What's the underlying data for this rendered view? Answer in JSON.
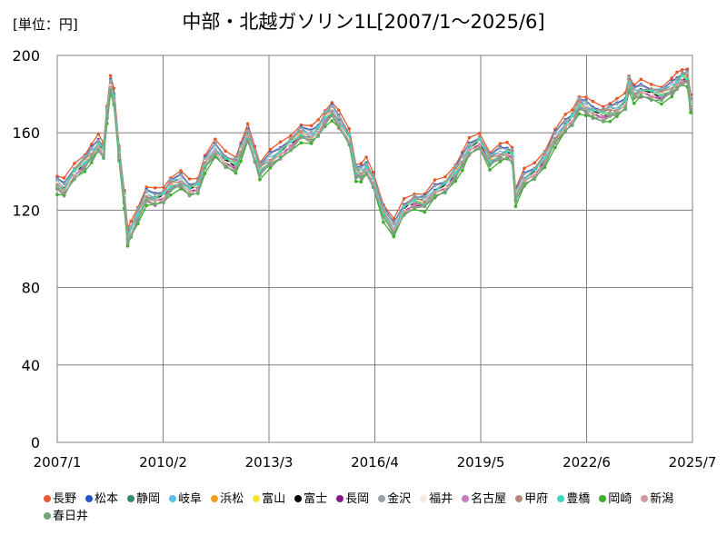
{
  "unit_label": "[単位：円]",
  "chart_data": {
    "type": "line",
    "title": "中部・北越ガソリン1L[2007/1～2025/6]",
    "xlabel": "",
    "ylabel": "",
    "xlim": [
      2007.0,
      2025.5
    ],
    "ylim": [
      0,
      200
    ],
    "yticks": [
      0,
      40,
      80,
      120,
      160,
      200
    ],
    "ytick_labels": [
      "0",
      "40",
      "80",
      "120",
      "160",
      "200"
    ],
    "xticks": [
      2007.0,
      2010.083,
      2013.167,
      2016.25,
      2019.333,
      2022.417,
      2025.5
    ],
    "xtick_labels": [
      "2007/1",
      "2010/2",
      "2013/3",
      "2016/4",
      "2019/5",
      "2022/6",
      "2025/7"
    ],
    "grid": true,
    "legend_position": "bottom",
    "base": {
      "x": [
        2007.0,
        2007.2,
        2007.5,
        2007.8,
        2008.0,
        2008.2,
        2008.35,
        2008.45,
        2008.55,
        2008.65,
        2008.8,
        2008.95,
        2009.05,
        2009.15,
        2009.35,
        2009.6,
        2009.85,
        2010.1,
        2010.3,
        2010.6,
        2010.85,
        2011.1,
        2011.3,
        2011.6,
        2011.9,
        2012.2,
        2012.35,
        2012.55,
        2012.75,
        2012.9,
        2013.2,
        2013.5,
        2013.8,
        2014.1,
        2014.4,
        2014.6,
        2014.8,
        2015.0,
        2015.2,
        2015.5,
        2015.7,
        2015.85,
        2016.0,
        2016.2,
        2016.5,
        2016.8,
        2017.1,
        2017.4,
        2017.7,
        2018.0,
        2018.3,
        2018.6,
        2018.8,
        2019.0,
        2019.3,
        2019.6,
        2019.9,
        2020.1,
        2020.25,
        2020.35,
        2020.6,
        2020.9,
        2021.2,
        2021.5,
        2021.8,
        2022.0,
        2022.2,
        2022.4,
        2022.6,
        2022.9,
        2023.1,
        2023.3,
        2023.55,
        2023.65,
        2023.8,
        2024.0,
        2024.3,
        2024.6,
        2024.9,
        2025.05,
        2025.2,
        2025.35,
        2025.45
      ],
      "y": [
        133,
        131,
        140,
        145,
        149,
        154,
        151,
        170,
        184,
        178,
        150,
        126,
        105,
        110,
        118,
        127,
        126,
        128,
        133,
        135,
        131,
        133,
        144,
        151,
        146,
        144,
        150,
        159,
        149,
        141,
        146,
        150,
        155,
        160,
        158,
        162,
        168,
        171,
        166,
        158,
        140,
        139,
        142,
        136,
        119,
        110,
        121,
        125,
        124,
        130,
        133,
        140,
        145,
        152,
        156,
        146,
        149,
        150,
        149,
        127,
        136,
        140,
        147,
        157,
        164,
        168,
        175,
        173,
        171,
        170,
        171,
        172,
        176,
        186,
        180,
        182,
        181,
        180,
        183,
        186,
        189,
        189,
        174
      ]
    },
    "series": [
      {
        "name": "長野",
        "color": "#E8582A",
        "offset": 4.5
      },
      {
        "name": "松本",
        "color": "#2155C8",
        "offset": 2.5
      },
      {
        "name": "静岡",
        "color": "#2E8F68",
        "offset": 0.5
      },
      {
        "name": "岐阜",
        "color": "#5BC0EB",
        "offset": 1.5
      },
      {
        "name": "浜松",
        "color": "#F0A020",
        "offset": -0.5
      },
      {
        "name": "富山",
        "color": "#F2E62C",
        "offset": -1.0
      },
      {
        "name": "富士",
        "color": "#000000",
        "offset": -0.8
      },
      {
        "name": "長岡",
        "color": "#8A1A8A",
        "offset": -1.5
      },
      {
        "name": "金沢",
        "color": "#9BA1A8",
        "offset": 2.0
      },
      {
        "name": "福井",
        "color": "#FBE9D8",
        "offset": 0.0
      },
      {
        "name": "名古屋",
        "color": "#C77BC4",
        "offset": -2.5
      },
      {
        "name": "甲府",
        "color": "#B38B7A",
        "offset": 0.8
      },
      {
        "name": "豊橋",
        "color": "#3ED8C0",
        "offset": -0.3
      },
      {
        "name": "岡崎",
        "color": "#3BAE2A",
        "offset": -4.0
      },
      {
        "name": "新潟",
        "color": "#D29AA0",
        "offset": -2.0
      },
      {
        "name": "春日井",
        "color": "#6FA67A",
        "offset": -3.0
      }
    ]
  }
}
